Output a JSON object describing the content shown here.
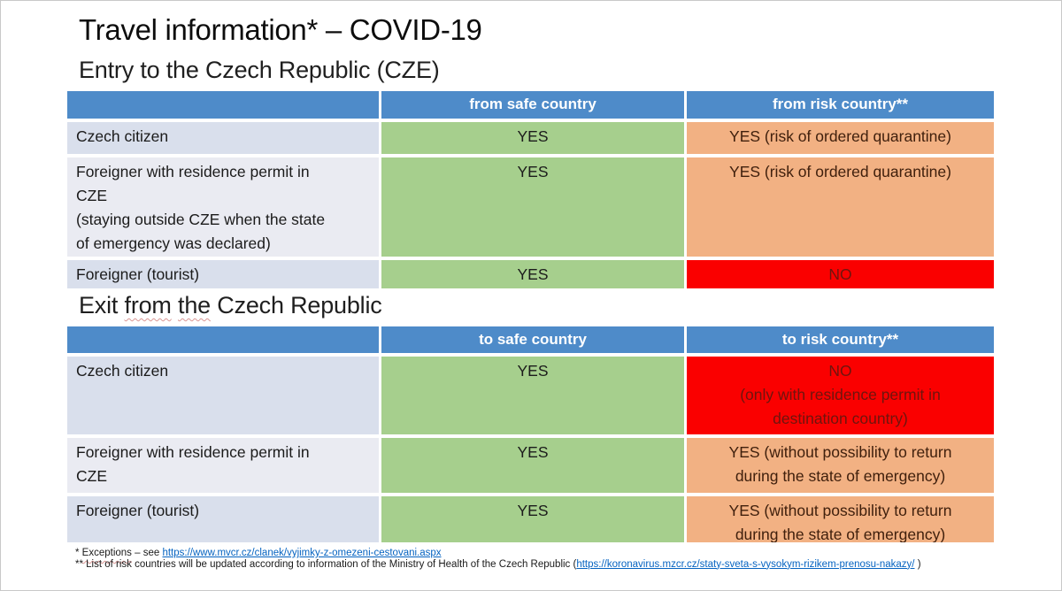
{
  "palette": {
    "header_blue": "#4e8bc9",
    "row_odd": "#d9dfec",
    "row_even": "#eaebf2",
    "green": "#a6cf8d",
    "orange": "#f2b183",
    "orange_text": "#40200d",
    "red": "#fa0000",
    "red_text": "#6e150e",
    "link_blue": "#0563c1",
    "wavy": "#d99694"
  },
  "slide": {
    "title": "Travel information* – COVID-19",
    "entry_heading": "Entry to the Czech Republic (CZE)",
    "exit_heading": {
      "pre": "Exit ",
      "wavy1": "from",
      "sep": " ",
      "wavy2": "the",
      "post": " Czech Republic"
    }
  },
  "entry_table": {
    "headers": {
      "col1": "",
      "col2": "from safe country",
      "col3": "from risk country**"
    },
    "rows": [
      {
        "label": "Czech citizen",
        "safe": "YES",
        "risk": "YES (risk of ordered quarantine)"
      },
      {
        "label": "Foreigner with residence permit in\nCZE\n(staying outside CZE when the state\nof emergency was declared)",
        "safe": "YES",
        "risk": "YES (risk of ordered quarantine)"
      },
      {
        "label": "Foreigner (tourist)",
        "safe": "YES",
        "risk": "NO"
      }
    ]
  },
  "exit_table": {
    "headers": {
      "col1": "",
      "col2": "to safe country",
      "col3": "to risk country**"
    },
    "rows": [
      {
        "label": "Czech citizen",
        "safe": "YES",
        "risk": "NO\n(only with residence permit in\ndestination country)"
      },
      {
        "label": "Foreigner with residence permit in\nCZE",
        "safe": "YES",
        "risk": "YES (without possibility to return\nduring the state of emergency)"
      },
      {
        "label": "Foreigner (tourist)",
        "safe": "YES",
        "risk": "YES (without possibility to return\nduring the state of emergency)"
      }
    ]
  },
  "footnotes": {
    "line1_prefix": "* ",
    "line1_wavy": "Exceptions",
    "line1_mid": " – see ",
    "line1_link": "https://www.mvcr.cz/clanek/vyjimky-z-omezeni-cestovani.aspx",
    "line2_text": "** List of risk countries will be updated according to information of the Ministry of Health of the Czech Republic (",
    "line2_link": "https://koronavirus.mzcr.cz/staty-sveta-s-vysokym-rizikem-prenosu-nakazy/",
    "line2_suffix": " )"
  }
}
